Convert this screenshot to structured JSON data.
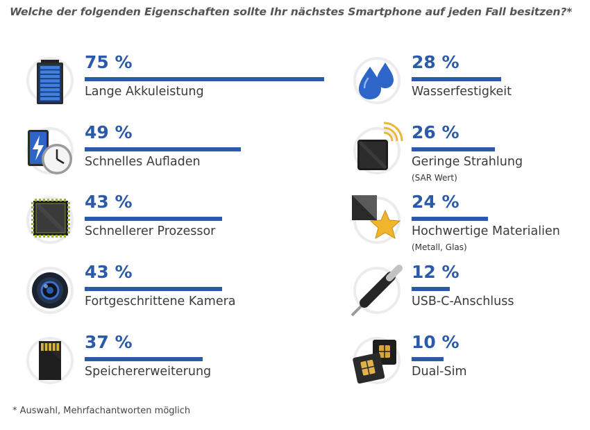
{
  "title": "Welche der folgenden Eigenschaften sollte Ihr nächstes Smartphone auf jeden Fall besitzen?*",
  "footnote": "* Auswahl, Mehrfachantworten möglich",
  "colors": {
    "bar": "#2a5aa8",
    "text": "#3a3a3a",
    "circle": "#ececec"
  },
  "chart_data": {
    "type": "bar",
    "title": "Welche der folgenden Eigenschaften sollte Ihr nächstes Smartphone auf jeden Fall besitzen?*",
    "unit": "%",
    "items": [
      {
        "label": "Lange Akkuleistung",
        "sublabel": "",
        "value": 75,
        "value_label": "75 %",
        "icon": "battery-icon"
      },
      {
        "label": "Schnelles Aufladen",
        "sublabel": "",
        "value": 49,
        "value_label": "49 %",
        "icon": "fast-charging-clock-icon"
      },
      {
        "label": "Schnellerer Prozessor",
        "sublabel": "",
        "value": 43,
        "value_label": "43 %",
        "icon": "processor-chip-icon"
      },
      {
        "label": "Fortgeschrittene Kamera",
        "sublabel": "",
        "value": 43,
        "value_label": "43 %",
        "icon": "camera-lens-icon"
      },
      {
        "label": "Speichererweiterung",
        "sublabel": "",
        "value": 37,
        "value_label": "37 %",
        "icon": "memory-card-icon"
      },
      {
        "label": "Wasserfestigkeit",
        "sublabel": "",
        "value": 28,
        "value_label": "28 %",
        "icon": "water-drops-icon"
      },
      {
        "label": "Geringe Strahlung",
        "sublabel": "(SAR Wert)",
        "value": 26,
        "value_label": "26 %",
        "icon": "radiation-signal-icon"
      },
      {
        "label": "Hochwertige Materialien",
        "sublabel": "(Metall, Glas)",
        "value": 24,
        "value_label": "24 %",
        "icon": "materials-star-icon"
      },
      {
        "label": "USB-C-Anschluss",
        "sublabel": "",
        "value": 12,
        "value_label": "12 %",
        "icon": "usb-c-cable-icon"
      },
      {
        "label": "Dual-Sim",
        "sublabel": "",
        "value": 10,
        "value_label": "10 %",
        "icon": "dual-sim-icon"
      }
    ]
  }
}
